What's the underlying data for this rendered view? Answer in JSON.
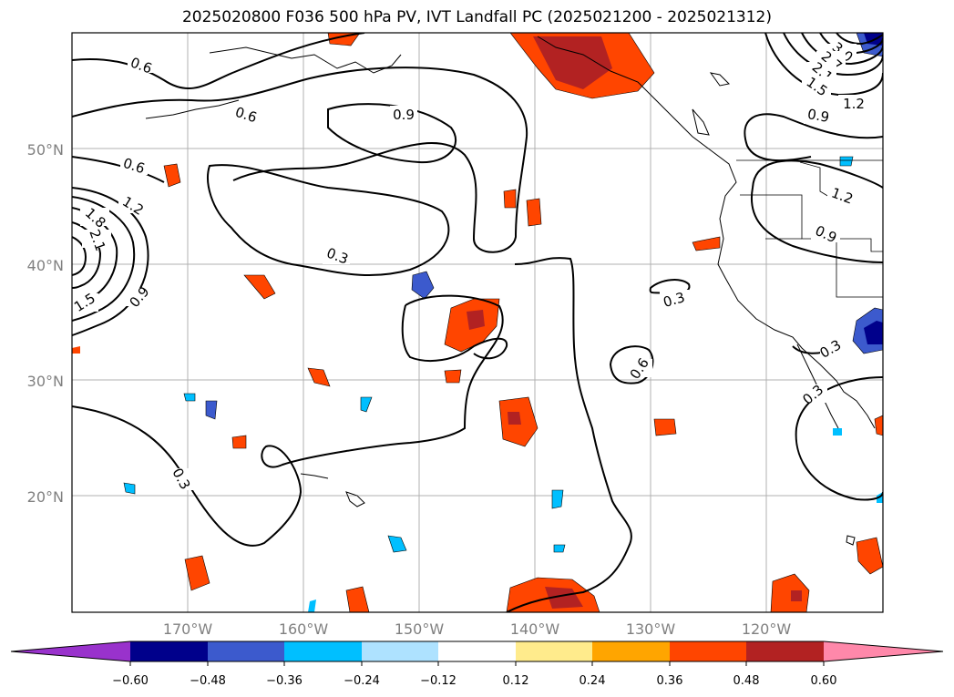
{
  "title": "2025020800 F036 500 hPa PV, IVT Landfall PC (2025021200 - 2025021312)",
  "lat_labels": [
    "50°N",
    "40°N",
    "30°N",
    "20°N"
  ],
  "lon_labels": [
    "170°W",
    "160°W",
    "150°W",
    "140°W",
    "130°W",
    "120°W"
  ],
  "contour_labels": [
    "0.6",
    "0.6",
    "0.9",
    "0.6",
    "1.2",
    "1.8",
    "2.1",
    "1.5",
    "0.9",
    "0.3",
    "0.3",
    "0.6",
    "0.3",
    "3.0",
    "2.7",
    "2.1",
    "1.5",
    "1.2",
    "0.9",
    "1.2",
    "0.9",
    "0.3",
    "0.3"
  ],
  "colorbar": {
    "ticks": [
      "−0.60",
      "−0.48",
      "−0.36",
      "−0.24",
      "−0.12",
      "0.12",
      "0.24",
      "0.36",
      "0.48",
      "0.60"
    ],
    "colors": [
      "#9932cc",
      "#00008b",
      "#3c5acd",
      "#00bfff",
      "#aee2ff",
      "#ffffff",
      "#ffeb8c",
      "#ffa500",
      "#ff4500",
      "#b22222",
      "#ff88aa"
    ]
  }
}
